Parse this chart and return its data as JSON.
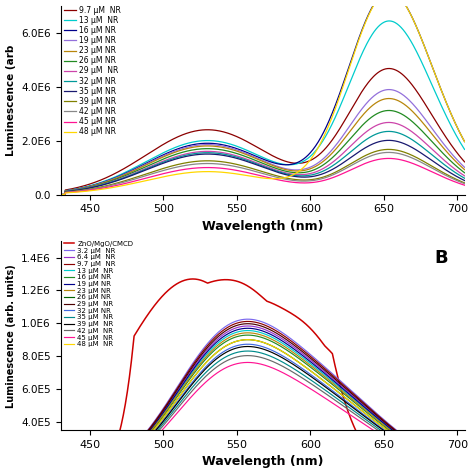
{
  "panel_A": {
    "ylabel": "Luminescence (arb",
    "xlabel": "Wavelength (nm)",
    "xlim": [
      430,
      705
    ],
    "ylim": [
      0,
      7000000
    ],
    "yticks": [
      0,
      2000000,
      4000000,
      6000000
    ],
    "ytick_labels": [
      "0.0",
      "2.0E6",
      "4.0E6",
      "6.0E6"
    ],
    "legend_entries": [
      {
        "label": "9.7 μM  NR",
        "color": "#8B0000"
      },
      {
        "label": "13 μM  NR",
        "color": "#00CCCC"
      },
      {
        "label": "16 μM NR",
        "color": "#00008B"
      },
      {
        "label": "19 μM NR",
        "color": "#9370DB"
      },
      {
        "label": "23 μM NR",
        "color": "#B8860B"
      },
      {
        "label": "26 μM NR",
        "color": "#228B22"
      },
      {
        "label": "29 μM  NR",
        "color": "#CC44AA"
      },
      {
        "label": "32 μM NR",
        "color": "#009999"
      },
      {
        "label": "35 μM NR",
        "color": "#191970"
      },
      {
        "label": "39 μM NR",
        "color": "#808000"
      },
      {
        "label": "42 μM NR",
        "color": "#888888"
      },
      {
        "label": "45 μM NR",
        "color": "#FF1493"
      },
      {
        "label": "48 μM NR",
        "color": "#FFD700"
      }
    ]
  },
  "panel_B": {
    "ylabel": "Luminescence (arb. units)",
    "xlabel": "Wavelength (nm)",
    "xlim": [
      430,
      705
    ],
    "ylim": [
      350000,
      1500000
    ],
    "yticks": [
      400000,
      600000,
      800000,
      1000000,
      1200000,
      1400000
    ],
    "ytick_labels": [
      "4.0E5",
      "6.0E5",
      "8.0E5",
      "1.0E6",
      "1.2E6",
      "1.4E6"
    ],
    "label_B": "B",
    "legend_entries": [
      {
        "label": "ZnO/MgO/CMCD",
        "color": "#CC0000"
      },
      {
        "label": "3.2 μM  NR",
        "color": "#7B68EE"
      },
      {
        "label": "6.4 μM  NR",
        "color": "#9932CC"
      },
      {
        "label": "9.7 μM  NR",
        "color": "#8B0000"
      },
      {
        "label": "13 μM  NR",
        "color": "#00CCCC"
      },
      {
        "label": "16 μM NR",
        "color": "#228B22"
      },
      {
        "label": "19 μM NR",
        "color": "#00008B"
      },
      {
        "label": "23 μM NR",
        "color": "#B8860B"
      },
      {
        "label": "26 μM NR",
        "color": "#006400"
      },
      {
        "label": "29 μM  NR",
        "color": "#4B0000"
      },
      {
        "label": "32 μM NR",
        "color": "#4169E1"
      },
      {
        "label": "35 μM  NR",
        "color": "#008B8B"
      },
      {
        "label": "39 μM  NR",
        "color": "#000000"
      },
      {
        "label": "42 μM  NR",
        "color": "#696969"
      },
      {
        "label": "45 μM  NR",
        "color": "#FF1493"
      },
      {
        "label": "48 μM  NR",
        "color": "#FFD700"
      }
    ]
  }
}
